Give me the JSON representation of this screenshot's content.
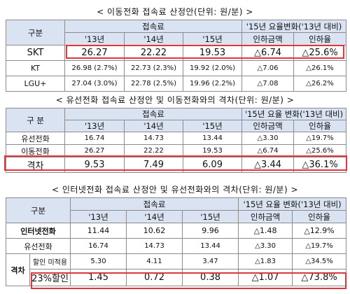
{
  "t1": {
    "title": "< 이동전화 접속료 산정안(단위: 원/분) >",
    "col_gubun": "구분",
    "col_fee": "접속료",
    "col_change": "'15년 요율변화('13년 대비)",
    "y13": "'13년",
    "y14": "'14년",
    "y15": "'15년",
    "cut_amt": "인하금액",
    "cut_rate": "인하율",
    "rows": [
      {
        "name": "SKT",
        "v13": "26.27",
        "v14": "22.22",
        "v15": "19.53",
        "amt": "△6.74",
        "rate": "△25.6%"
      },
      {
        "name": "KT",
        "v13": "26.98 (2.7%)",
        "v14": "22.73 (2.3%)",
        "v15": "19.92 (2.0%)",
        "amt": "△7.06",
        "rate": "△26.1%"
      },
      {
        "name": "LGU+",
        "v13": "27.04 (3.0%)",
        "v14": "22.78 (2.5%)",
        "v15": "19.96 (2.2%)",
        "amt": "△7.08",
        "rate": "△26.2%"
      }
    ]
  },
  "t2": {
    "title": "< 유선전화 접속료 산정안 및 이동전화와의 격차(단위: 원/분) >",
    "col_gubun": "구 분",
    "col_fee": "접속료",
    "col_change": "'15년 요율 변화('13년 대비)",
    "y13": "'13년",
    "y14": "'14년",
    "y15": "'15년",
    "cut_amt": "인하금액",
    "cut_rate": "인하율",
    "rows": [
      {
        "name": "유선전화",
        "v13": "16.74",
        "v14": "14.73",
        "v15": "13.44",
        "amt": "△3.30",
        "rate": "△19.7%"
      },
      {
        "name": "이동전화",
        "v13": "26.27",
        "v14": "22.22",
        "v15": "19.53",
        "amt": "△6.74",
        "rate": "△25.6%"
      },
      {
        "name": "격차",
        "v13": "9.53",
        "v14": "7.49",
        "v15": "6.09",
        "amt": "△3.44",
        "rate": "△36.1%"
      }
    ]
  },
  "t3": {
    "title": "< 인터넷전화 접속료 산정안 및 유선전화와의 격차(단위: 원/분) >",
    "col_gubun": "구분",
    "col_fee": "접속료",
    "col_change": "'15년 요율 변화('13년 대비)",
    "y13": "'13년",
    "y14": "'14년",
    "y15": "'15년",
    "cut_amt": "인하금액",
    "cut_rate": "인하율",
    "rows": [
      {
        "name": "인터넷전화",
        "v13": "11.44",
        "v14": "10.62",
        "v15": "9.96",
        "amt": "△1.48",
        "rate": "△12.9%"
      },
      {
        "name": "유선전화",
        "v13": "16.74",
        "v14": "14.73",
        "v15": "13.44",
        "amt": "△3.30",
        "rate": "△19.7%"
      }
    ],
    "gap_label": "격차",
    "gap_rows": [
      {
        "name": "할인 미적용",
        "v13": "5.30",
        "v14": "4.11",
        "v15": "3.47",
        "amt": "△1.83",
        "rate": "△34.5%"
      },
      {
        "name": "23%할인",
        "v13": "1.45",
        "v14": "0.72",
        "v15": "0.38",
        "amt": "△1.07",
        "rate": "△73.8%"
      }
    ]
  }
}
